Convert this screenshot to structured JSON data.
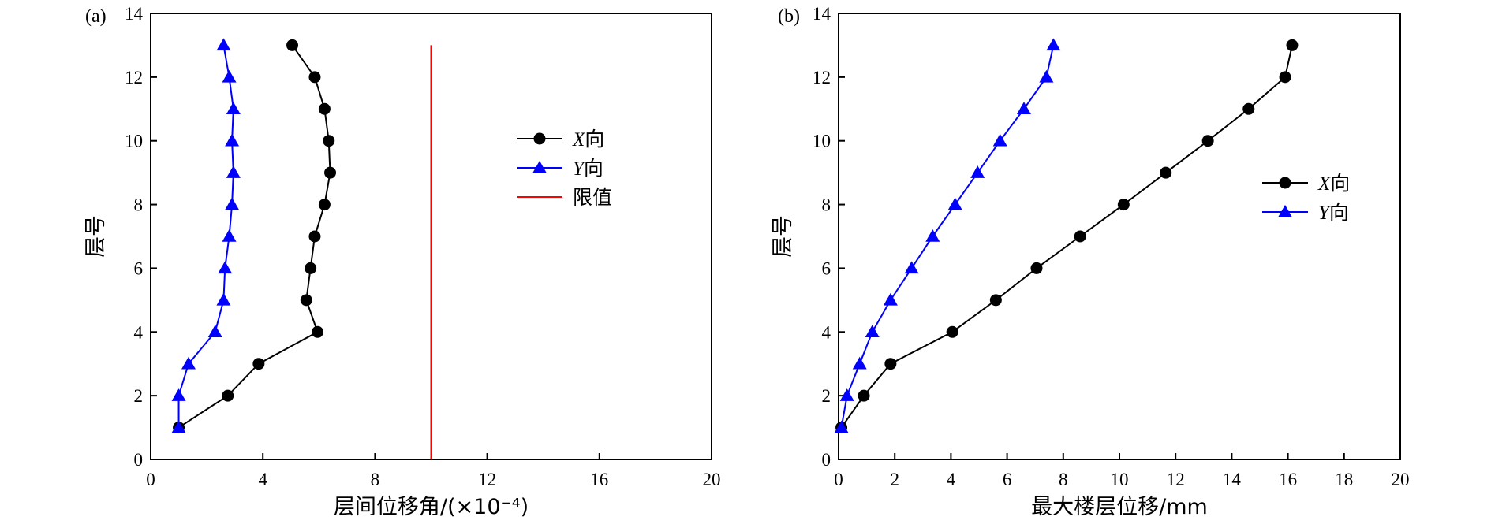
{
  "chart_data": [
    {
      "type": "line",
      "panel_label": "(a)",
      "xlabel": "层间位移角/(×10⁻⁴)",
      "ylabel": "层号",
      "xlim": [
        0,
        20
      ],
      "ylim": [
        0,
        14
      ],
      "xticks": [
        0,
        4,
        8,
        12,
        16,
        20
      ],
      "yticks": [
        0,
        2,
        4,
        6,
        8,
        10,
        12,
        14
      ],
      "xtick_labels": [
        "0",
        "4",
        "8",
        "12",
        "16",
        "20"
      ],
      "ytick_labels": [
        "0",
        "2",
        "4",
        "6",
        "8",
        "10",
        "12",
        "14"
      ],
      "grid": false,
      "legend_position": "center-right",
      "series": [
        {
          "name": "X向",
          "name_italic": "X",
          "name_suffix": "向",
          "color": "#000000",
          "marker": "circle",
          "points": [
            [
              1.0,
              1
            ],
            [
              2.75,
              2
            ],
            [
              3.85,
              3
            ],
            [
              5.95,
              4
            ],
            [
              5.55,
              5
            ],
            [
              5.7,
              6
            ],
            [
              5.85,
              7
            ],
            [
              6.2,
              8
            ],
            [
              6.4,
              9
            ],
            [
              6.35,
              10
            ],
            [
              6.2,
              11
            ],
            [
              5.85,
              12
            ],
            [
              5.05,
              13
            ]
          ]
        },
        {
          "name": "Y向",
          "name_italic": "Y",
          "name_suffix": "向",
          "color": "#0000ff",
          "marker": "triangle",
          "points": [
            [
              1.0,
              1
            ],
            [
              1.0,
              2
            ],
            [
              1.35,
              3
            ],
            [
              2.3,
              4
            ],
            [
              2.6,
              5
            ],
            [
              2.65,
              6
            ],
            [
              2.8,
              7
            ],
            [
              2.9,
              8
            ],
            [
              2.95,
              9
            ],
            [
              2.9,
              10
            ],
            [
              2.95,
              11
            ],
            [
              2.8,
              12
            ],
            [
              2.6,
              13
            ]
          ]
        },
        {
          "name": "限值",
          "name_italic": "",
          "name_suffix": "限值",
          "color": "#ff0000",
          "marker": "none",
          "points": [
            [
              10,
              0
            ],
            [
              10,
              13
            ]
          ]
        }
      ]
    },
    {
      "type": "line",
      "panel_label": "(b)",
      "xlabel": "最大楼层位移/mm",
      "ylabel": "层号",
      "xlim": [
        0,
        20
      ],
      "ylim": [
        0,
        14
      ],
      "xticks": [
        0,
        2,
        4,
        6,
        8,
        10,
        12,
        14,
        16,
        18,
        20
      ],
      "yticks": [
        0,
        2,
        4,
        6,
        8,
        10,
        12,
        14
      ],
      "xtick_labels": [
        "0",
        "2",
        "4",
        "6",
        "8",
        "10",
        "12",
        "14",
        "16",
        "18",
        "20"
      ],
      "ytick_labels": [
        "0",
        "2",
        "4",
        "6",
        "8",
        "10",
        "12",
        "14"
      ],
      "grid": false,
      "legend_position": "center-right",
      "series": [
        {
          "name": "X向",
          "name_italic": "X",
          "name_suffix": "向",
          "color": "#000000",
          "marker": "circle",
          "points": [
            [
              0.1,
              1
            ],
            [
              0.9,
              2
            ],
            [
              1.85,
              3
            ],
            [
              4.05,
              4
            ],
            [
              5.6,
              5
            ],
            [
              7.05,
              6
            ],
            [
              8.6,
              7
            ],
            [
              10.15,
              8
            ],
            [
              11.65,
              9
            ],
            [
              13.15,
              10
            ],
            [
              14.6,
              11
            ],
            [
              15.9,
              12
            ],
            [
              16.15,
              13
            ]
          ]
        },
        {
          "name": "Y向",
          "name_italic": "Y",
          "name_suffix": "向",
          "color": "#0000ff",
          "marker": "triangle",
          "points": [
            [
              0.1,
              1
            ],
            [
              0.3,
              2
            ],
            [
              0.75,
              3
            ],
            [
              1.2,
              4
            ],
            [
              1.85,
              5
            ],
            [
              2.6,
              6
            ],
            [
              3.35,
              7
            ],
            [
              4.15,
              8
            ],
            [
              4.95,
              9
            ],
            [
              5.75,
              10
            ],
            [
              6.6,
              11
            ],
            [
              7.4,
              12
            ],
            [
              7.65,
              13
            ]
          ]
        }
      ]
    }
  ]
}
